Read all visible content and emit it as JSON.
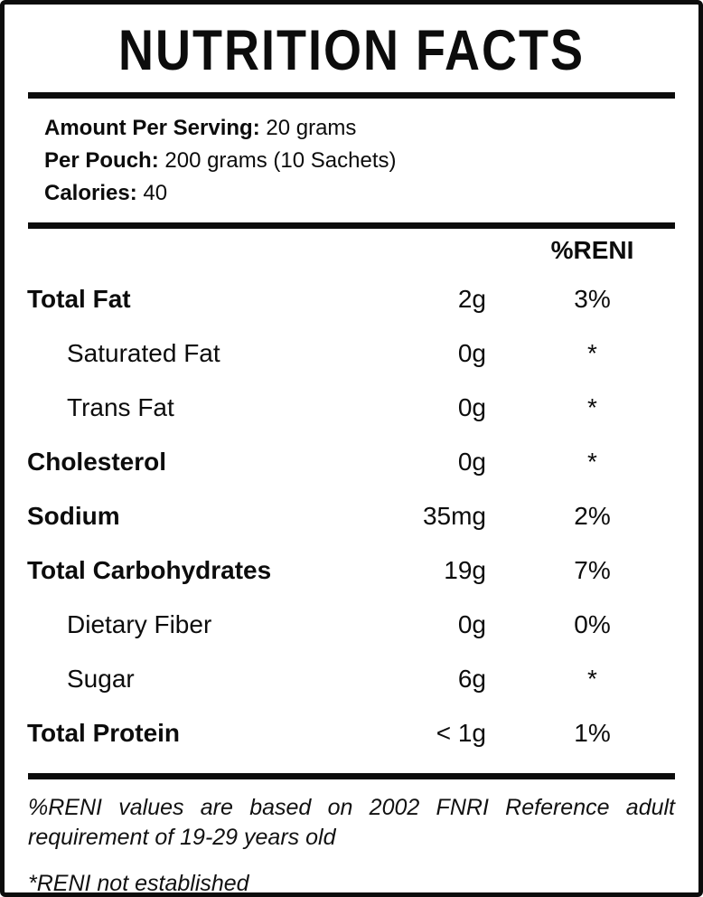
{
  "title": "NUTRITION FACTS",
  "serving": {
    "lines": [
      {
        "label": "Amount Per Serving:",
        "value": "20 grams"
      },
      {
        "label": "Per Pouch:",
        "value": "200 grams (10 Sachets)"
      },
      {
        "label": "Calories:",
        "value": "40"
      }
    ]
  },
  "table": {
    "reni_header": "%RENI",
    "rows": [
      {
        "name": "Total Fat",
        "amount": "2g",
        "reni": "3%"
      },
      {
        "name": "Saturated Fat",
        "amount": "0g",
        "reni": "*"
      },
      {
        "name": "Trans Fat",
        "amount": "0g",
        "reni": "*"
      },
      {
        "name": "Cholesterol",
        "amount": "0g",
        "reni": "*"
      },
      {
        "name": "Sodium",
        "amount": "35mg",
        "reni": "2%"
      },
      {
        "name": "Total Carbohydrates",
        "amount": "19g",
        "reni": "7%"
      },
      {
        "name": "Dietary Fiber",
        "amount": "0g",
        "reni": "0%"
      },
      {
        "name": "Sugar",
        "amount": "6g",
        "reni": "*"
      },
      {
        "name": "Total Protein",
        "amount": "< 1g",
        "reni": "1%"
      }
    ]
  },
  "footnotes": {
    "reni_basis_line1": "%RENI values are based on 2002 FNRI Reference adult",
    "reni_basis_line2": "requirement of 19-29 years old",
    "not_established": "*RENI not established"
  },
  "colors": {
    "text": "#0c0c0c",
    "background": "#ffffff"
  }
}
